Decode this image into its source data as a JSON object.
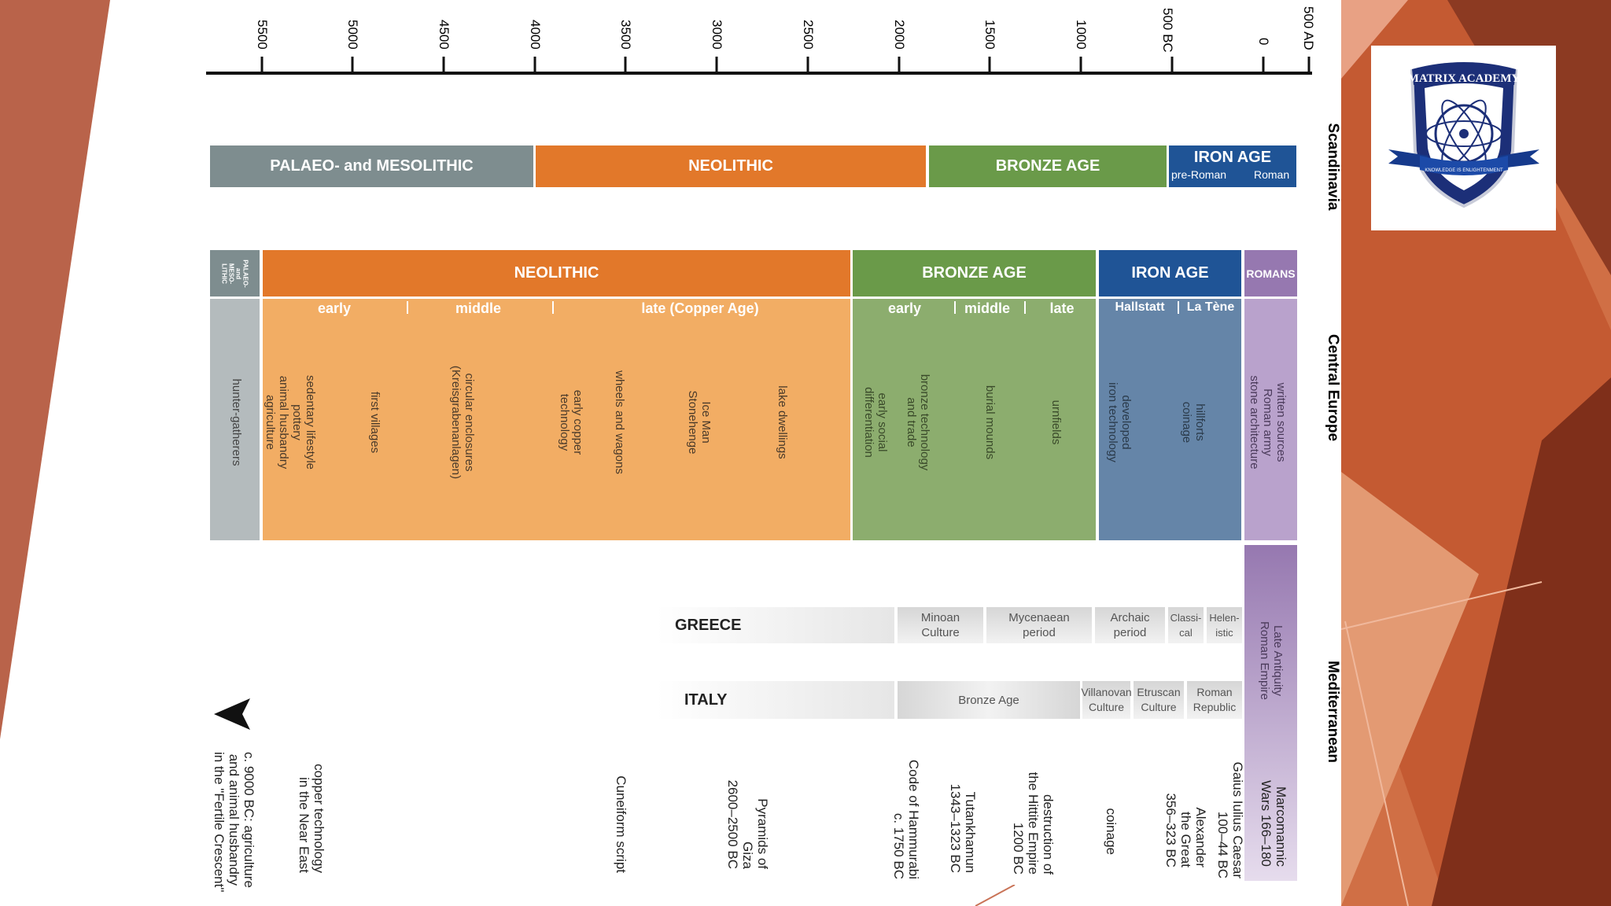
{
  "logo": {
    "name": "MATRIX ACADEMY",
    "motto": "KNOWLEDGE IS ENLIGHTENMENT"
  },
  "axis": {
    "ticks": [
      "5500",
      "5000",
      "4500",
      "4000",
      "3500",
      "3000",
      "2500",
      "2000",
      "1500",
      "1000",
      "500 BC",
      "0",
      "500 AD"
    ]
  },
  "regions": {
    "scandinavia": "Scandinavia",
    "central_europe": "Central Europe",
    "mediterranean": "Mediterranean"
  },
  "scandinavia": {
    "palaeo": "PALAEO- and MESOLITHIC",
    "neolithic": "NEOLITHIC",
    "bronze": "BRONZE AGE",
    "iron": "IRON AGE",
    "pre_roman": "pre-Roman",
    "roman": "Roman"
  },
  "central": {
    "palaeo": "PALAEO-\nand\nMESO-\nLITHIC",
    "neolithic": "NEOLITHIC",
    "bronze": "BRONZE AGE",
    "iron": "IRON AGE",
    "romans": "ROMANS",
    "neo_early": "early",
    "neo_middle": "middle",
    "neo_late": "late (Copper Age)",
    "br_early": "early",
    "br_middle": "middle",
    "br_late": "late",
    "hallstatt": "Hallstatt",
    "la_tene": "La Tène",
    "hunter": "hunter-gatherers",
    "neo_items": [
      "sedentary lifestyle\npottery\nanimal husbandry\nagriculture",
      "first villages",
      "circular enclosures\n(Kreisgrabenanlagen)",
      "early copper\ntechnology",
      "wheels and wagons",
      "Ice Man\nStonehenge",
      "lake dwellings"
    ],
    "br_items": [
      "early social\ndifferentiation",
      "bronze technology\nand trade",
      "burial mounds",
      "urnfields"
    ],
    "iron_items": [
      "developed\niron technology",
      "hillforts\ncoinage"
    ],
    "roman_items": "written sources\nRoman army\nstone architecture"
  },
  "greece": {
    "label": "GREECE",
    "boxes": [
      "Minoan\nCulture",
      "Mycenaean\nperiod",
      "Archaic\nperiod",
      "Classi-\ncal",
      "Helen-\nistic"
    ]
  },
  "italy": {
    "label": "ITALY",
    "boxes": [
      "Bronze Age",
      "Villanovan\nCulture",
      "Etruscan\nCulture",
      "Roman\nRepublic"
    ]
  },
  "late_antiquity": "Late Antiquity\nRoman Empire",
  "events": [
    "c. 9000 BC: agriculture\nand animal husbandry\nin the \"Fertile Crescent\"",
    "copper technology\nin the Near East",
    "Cuneiform script",
    "Pyramids of\nGiza\n2600–2500 BC",
    "Code of Hammurabi\nc. 1750 BC",
    "Tutankhamun\n1343–1323 BC",
    "destruction of\nthe Hittite Empire\n1200 BC",
    "coinage",
    "Alexander\nthe Great\n356–323 BC",
    "Gaius Iulius Caesar\n100–44 BC",
    "Marcomannic\nWars 166–180"
  ],
  "colors": {
    "grey": "#7e8d8f",
    "orange": "#e2782a",
    "orange_light": "#f2ad64",
    "green": "#6a9a49",
    "green_light": "#8cad6e",
    "blue": "#1f5496",
    "blue_light": "#6585a8",
    "purple": "#9678b0",
    "purple_light": "#b9a2cc"
  }
}
